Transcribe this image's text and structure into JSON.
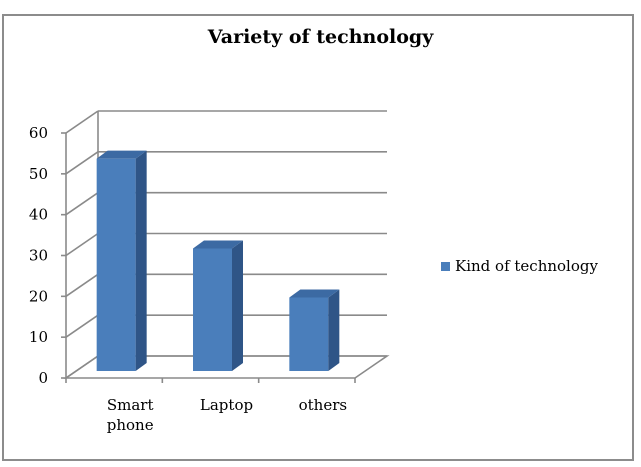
{
  "chart_data": {
    "type": "bar",
    "title": "Variety of technology",
    "categories": [
      [
        "Smart",
        "phone"
      ],
      [
        "Laptop"
      ],
      [
        "others"
      ]
    ],
    "series": [
      {
        "name": "Kind of technology",
        "values": [
          52,
          30,
          18
        ],
        "color": "#4a7ebb"
      }
    ],
    "ylim": [
      0,
      60
    ],
    "yticks": [
      "0",
      "10",
      "20",
      "30",
      "40",
      "50",
      "60"
    ],
    "grid": true,
    "legend": "right",
    "style": "3d-column"
  }
}
